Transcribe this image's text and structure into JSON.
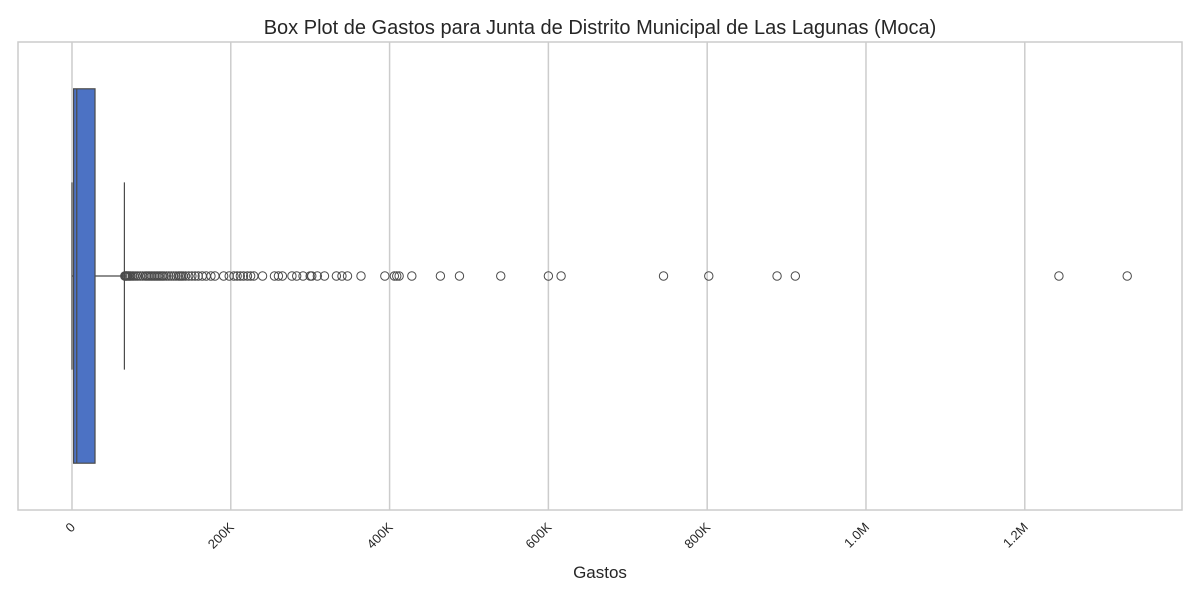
{
  "chart_data": {
    "type": "box",
    "orientation": "horizontal",
    "title": "Box Plot de Gastos para Junta de Distrito Municipal de Las Lagunas (Moca)",
    "xlabel": "Gastos",
    "ylabel": "",
    "xlim": [
      -68000,
      1398000
    ],
    "x_ticks": [
      {
        "value": 0,
        "label": "0"
      },
      {
        "value": 200000,
        "label": "200K"
      },
      {
        "value": 400000,
        "label": "400K"
      },
      {
        "value": 600000,
        "label": "600K"
      },
      {
        "value": 800000,
        "label": "800K"
      },
      {
        "value": 1000000,
        "label": "1.0M"
      },
      {
        "value": 1200000,
        "label": "1.2M"
      }
    ],
    "grid": true,
    "box": {
      "whisker_low": 0,
      "q1": 2000,
      "median": 6000,
      "q3": 29000,
      "whisker_high": 66000,
      "fill_color": "#4c72c4",
      "median_color": "#e8b34a",
      "edge_color": "#4a4a4a"
    },
    "outliers": [
      66500,
      67500,
      68500,
      69500,
      71000,
      72500,
      74000,
      76000,
      78000,
      80500,
      83000,
      86000,
      89000,
      92000,
      94000,
      96000,
      98000,
      100000,
      102000,
      104000,
      106000,
      108000,
      110000,
      112000,
      114000,
      116000,
      119000,
      122000,
      125000,
      128000,
      131000,
      134000,
      136000,
      138000,
      140000,
      143000,
      147000,
      151000,
      155000,
      159000,
      164000,
      169000,
      175000,
      180000,
      191000,
      198000,
      204000,
      208000,
      212000,
      216000,
      221000,
      225000,
      229000,
      240000,
      255000,
      260000,
      265000,
      277000,
      283000,
      291000,
      300000,
      302000,
      309000,
      318000,
      333000,
      340000,
      347000,
      364000,
      394000,
      406000,
      409000,
      412000,
      428000,
      464000,
      488000,
      540000,
      600000,
      616000,
      745000,
      802000,
      888000,
      911000,
      1243000,
      1329000
    ]
  }
}
